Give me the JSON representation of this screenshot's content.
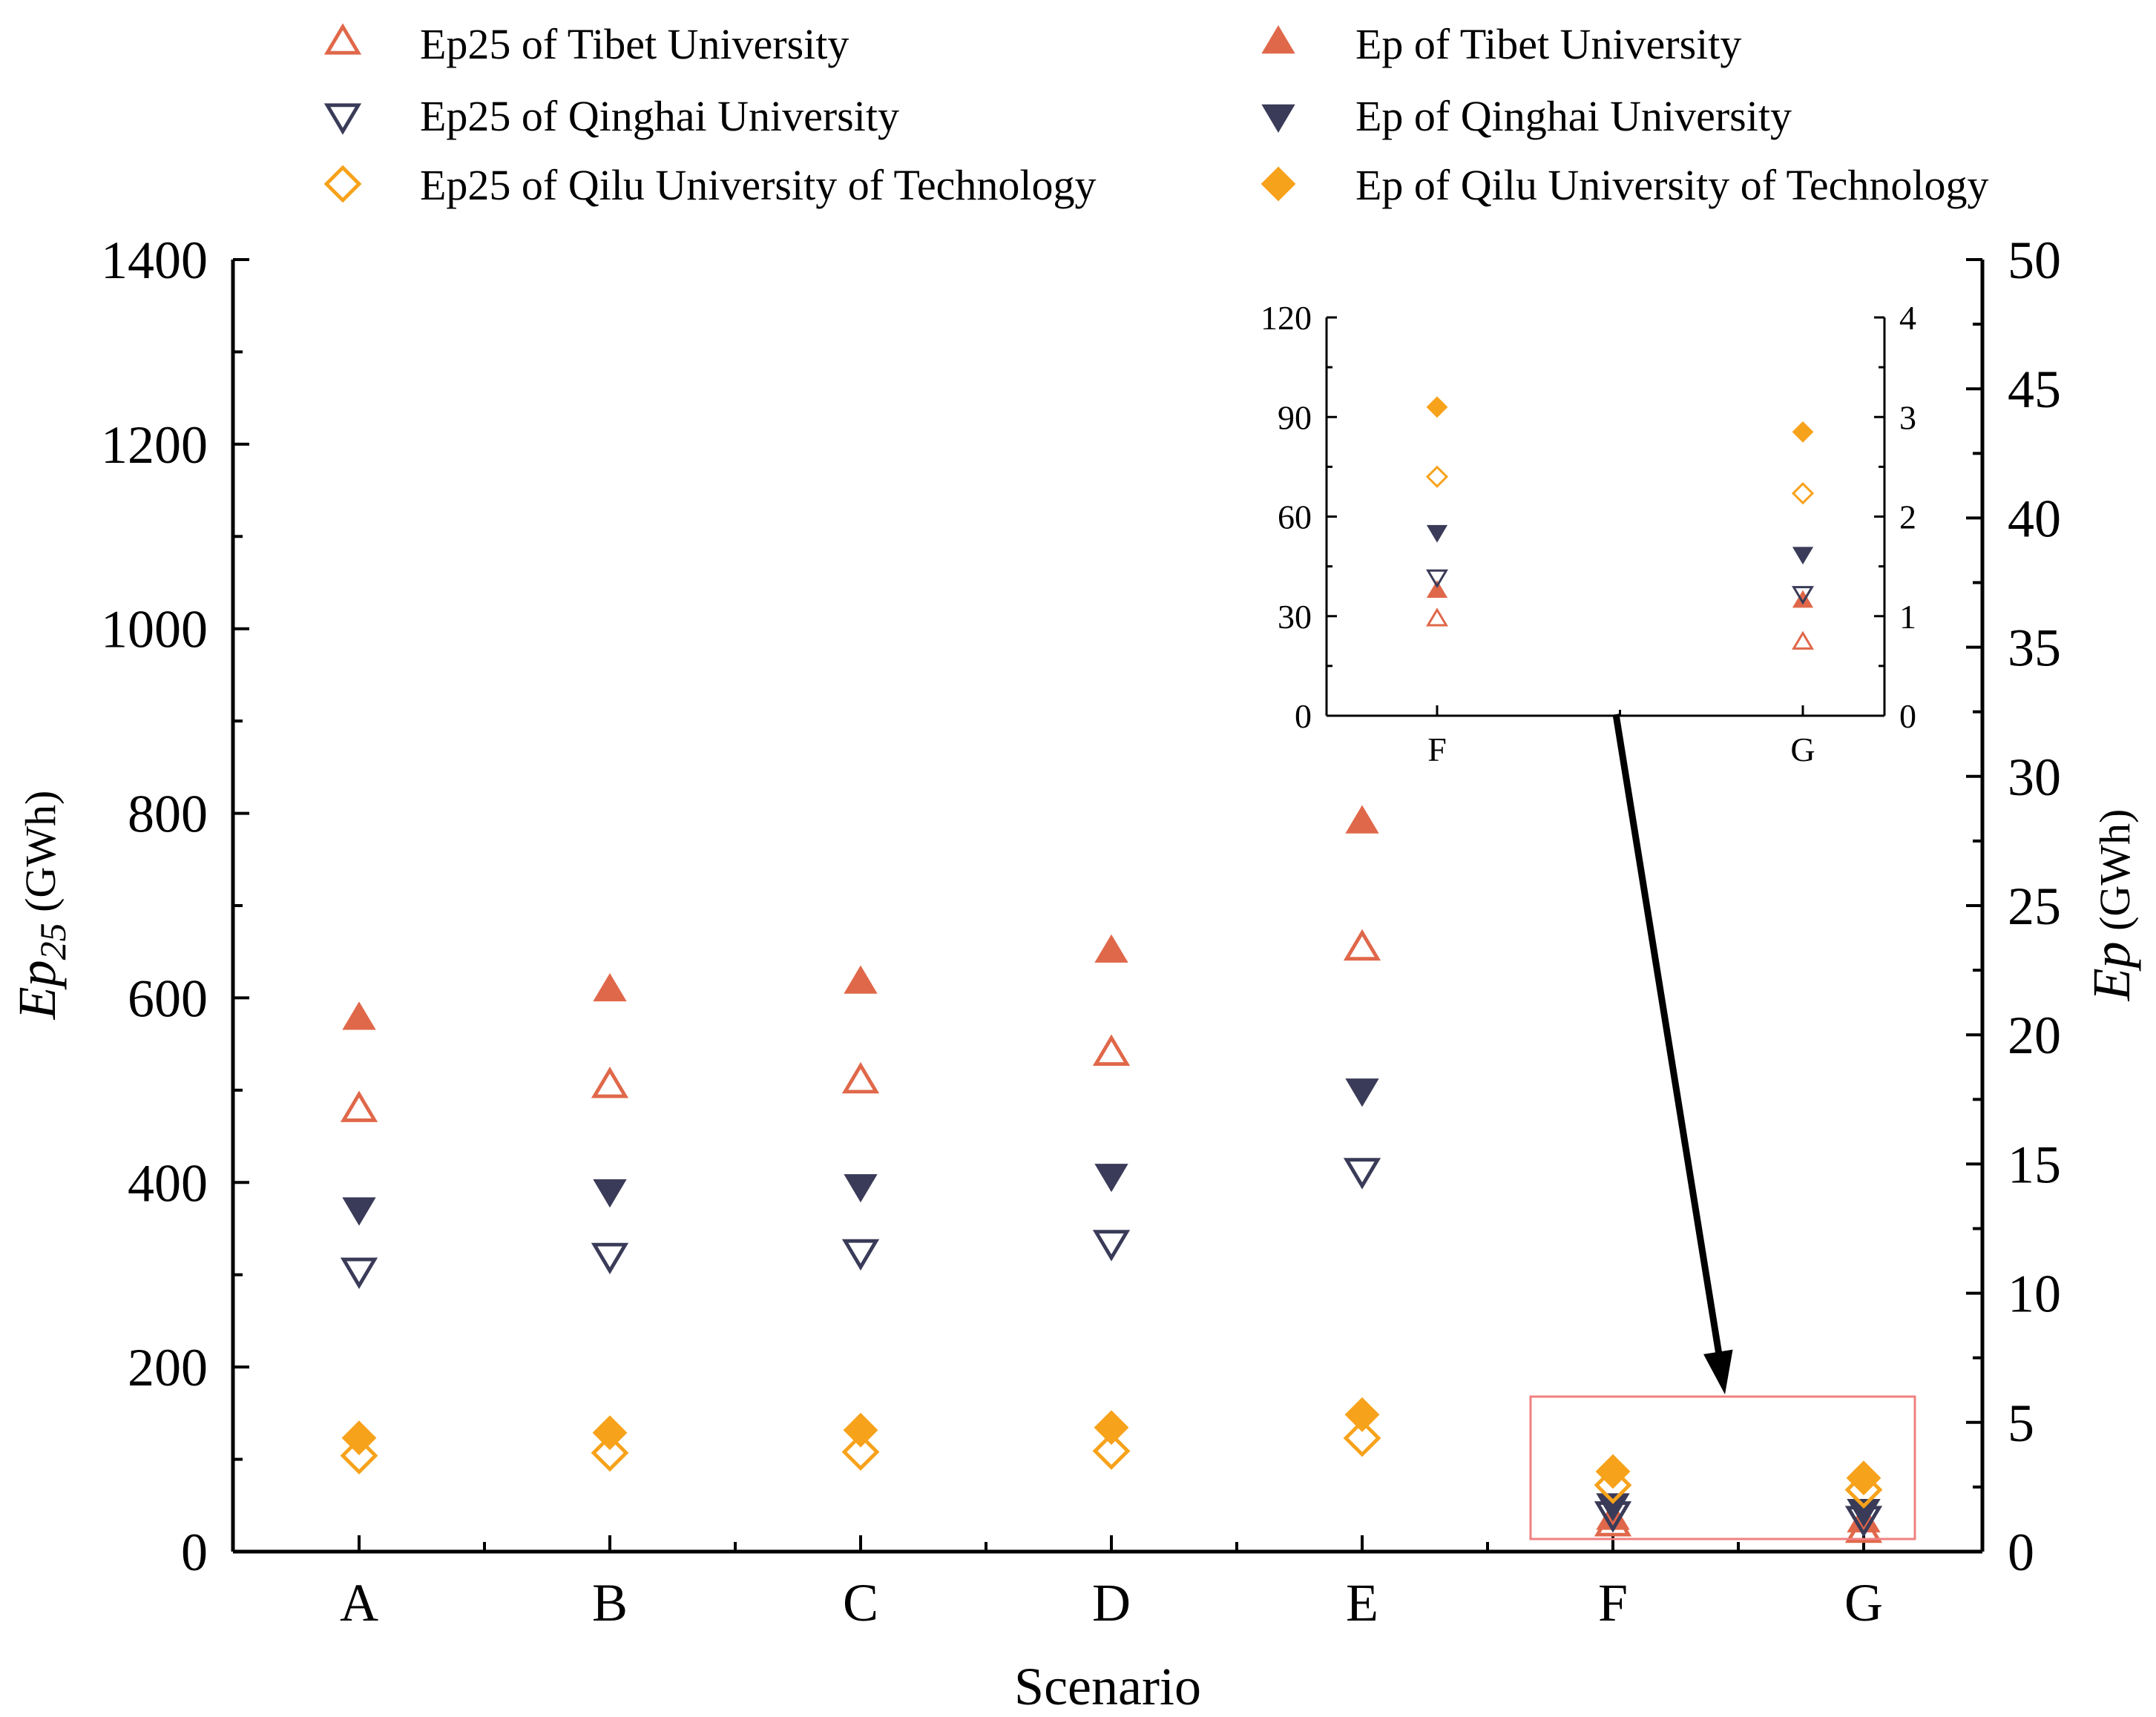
{
  "chart_data": {
    "type": "scatter",
    "title": "",
    "xlabel": "Scenario",
    "ylabel_left": {
      "base": "Ep",
      "subscript": "25",
      "unit": " (GWh)"
    },
    "ylabel_right": {
      "base": "Ep",
      "unit": " (GWh)"
    },
    "categories": [
      "A",
      "B",
      "C",
      "D",
      "E",
      "F",
      "G"
    ],
    "ylim_left": [
      0,
      1400
    ],
    "ylim_right": [
      0,
      50
    ],
    "yticks_left": [
      "0",
      "200",
      "400",
      "600",
      "800",
      "1000",
      "1200",
      "1400"
    ],
    "yticks_right": [
      "0",
      "5",
      "10",
      "15",
      "20",
      "25",
      "30",
      "35",
      "40",
      "45",
      "50"
    ],
    "legend_position": "top",
    "series": [
      {
        "name": "Ep25 of Tibet University",
        "axis": "left",
        "marker": "triangle-up-open",
        "color": "#e0684a",
        "values": [
          478,
          504,
          509,
          539,
          653,
          29,
          22
        ]
      },
      {
        "name": "Ep of Tibet University",
        "axis": "right",
        "marker": "triangle-up-filled",
        "color": "#e0684a",
        "values": [
          20.6,
          21.7,
          22.0,
          23.2,
          28.2,
          1.25,
          1.15
        ]
      },
      {
        "name": "Ep25 of Qinghai University",
        "axis": "left",
        "marker": "triangle-down-open",
        "color": "#3a3b58",
        "values": [
          306,
          322,
          326,
          336,
          414,
          42,
          37
        ]
      },
      {
        "name": "Ep of Qinghai University",
        "axis": "right",
        "marker": "triangle-down-filled",
        "color": "#3a3b58",
        "values": [
          13.3,
          14.0,
          14.2,
          14.6,
          17.9,
          1.85,
          1.63
        ]
      },
      {
        "name": "Ep25 of Qilu University of Technology",
        "axis": "left",
        "marker": "diamond-open",
        "color": "#f7a21b",
        "values": [
          104,
          107,
          108,
          109,
          123,
          72,
          67
        ]
      },
      {
        "name": "Ep of Qilu University of Technology",
        "axis": "right",
        "marker": "diamond-filled",
        "color": "#f7a21b",
        "values": [
          4.4,
          4.6,
          4.7,
          4.8,
          5.3,
          3.1,
          2.85
        ]
      }
    ],
    "inset": {
      "categories": [
        "F",
        "G"
      ],
      "ylim_left": [
        0,
        120
      ],
      "ylim_right": [
        0,
        4
      ],
      "yticks_left": [
        "0",
        "30",
        "60",
        "90",
        "120"
      ],
      "yticks_right": [
        "0",
        "1",
        "2",
        "3",
        "4"
      ]
    }
  },
  "colors": {
    "tibet": "#e0684a",
    "qinghai": "#3a3b58",
    "qilu": "#f7a21b",
    "highlight_box": "#f08080",
    "axis": "#000000"
  }
}
